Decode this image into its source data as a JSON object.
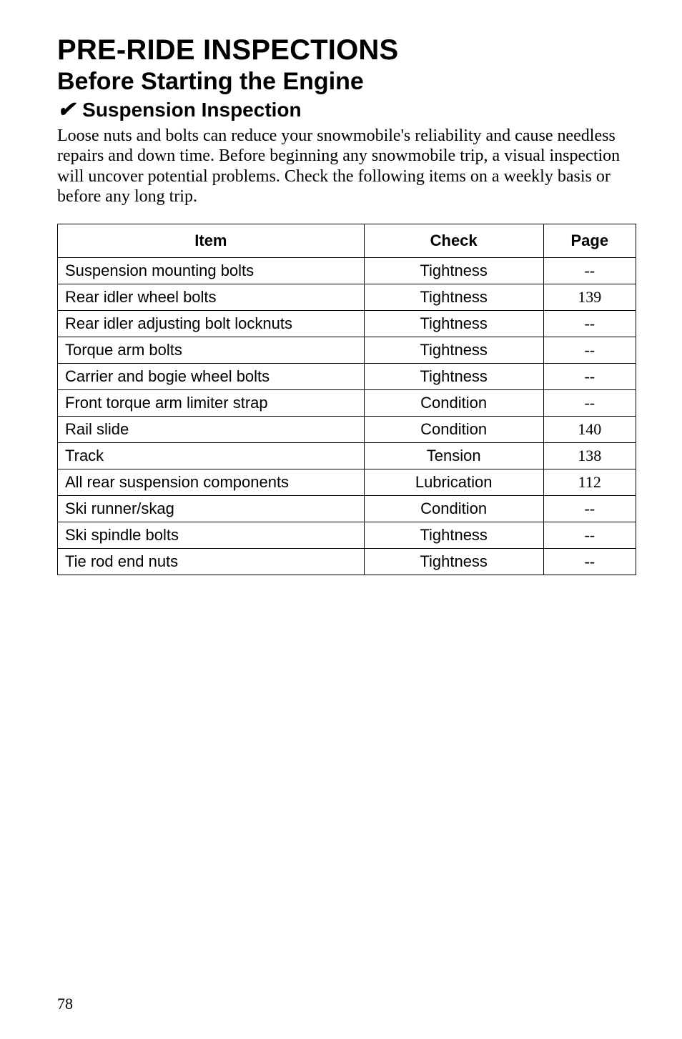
{
  "title": "PRE-RIDE INSPECTIONS",
  "subtitle": "Before Starting the Engine",
  "checkmark": "✔",
  "section": "Suspension Inspection",
  "body": "Loose nuts and bolts can reduce your snowmobile's reliability and cause needless repairs and down time. Before beginning any snowmobile trip, a visual inspection will uncover potential problems. Check the following items on a weekly basis or before any long trip.",
  "table": {
    "headers": {
      "item": "Item",
      "check": "Check",
      "page": "Page"
    },
    "rows": [
      {
        "item": "Suspension mounting bolts",
        "check": "Tightness",
        "page": "--"
      },
      {
        "item": "Rear idler wheel bolts",
        "check": "Tightness",
        "page": "139"
      },
      {
        "item": "Rear idler adjusting bolt locknuts",
        "check": "Tightness",
        "page": "--"
      },
      {
        "item": "Torque arm bolts",
        "check": "Tightness",
        "page": "--"
      },
      {
        "item": "Carrier and bogie wheel bolts",
        "check": "Tightness",
        "page": "--"
      },
      {
        "item": "Front torque arm limiter strap",
        "check": "Condition",
        "page": "--"
      },
      {
        "item": "Rail slide",
        "check": "Condition",
        "page": "140"
      },
      {
        "item": "Track",
        "check": "Tension",
        "page": "138"
      },
      {
        "item": "All rear suspension components",
        "check": "Lubrication",
        "page": "112"
      },
      {
        "item": "Ski runner/skag",
        "check": "Condition",
        "page": "--"
      },
      {
        "item": "Ski spindle bolts",
        "check": "Tightness",
        "page": "--"
      },
      {
        "item": "Tie rod end nuts",
        "check": "Tightness",
        "page": "--"
      }
    ]
  },
  "page_number": "78"
}
